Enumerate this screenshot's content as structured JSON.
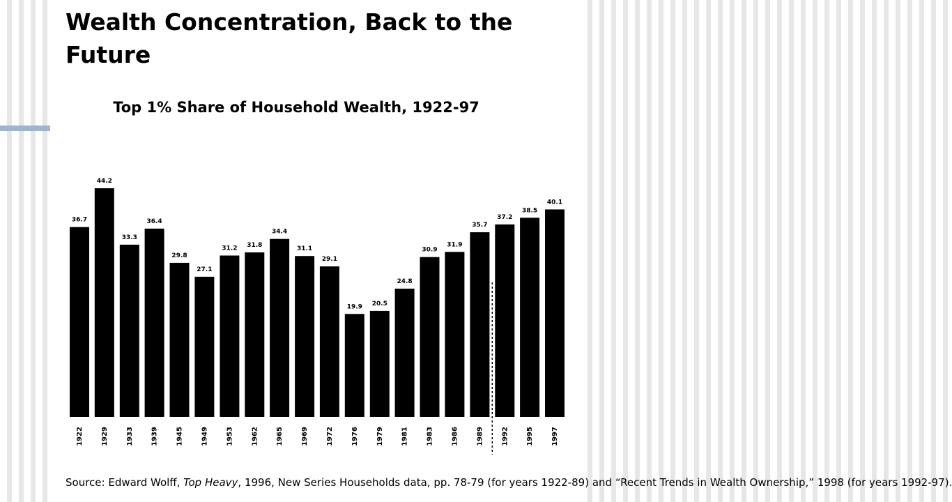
{
  "slide": {
    "title": "Wealth Concentration, Back to the Future"
  },
  "source": {
    "prefix": "Source: Edward Wolff, ",
    "book_title": "Top Heavy",
    "rest": ", 1996, New Series Households data, pp. 78-79 (for years 1922-89) and “Recent Trends in Wealth Ownership,” 1998 (for years 1992-97)."
  },
  "colors": {
    "bar": "#000000",
    "accent_line": "#9fb4cd",
    "panel": "#ffffff"
  },
  "chart_data": {
    "type": "bar",
    "title": "Top 1% Share of Household Wealth, 1922-97",
    "categories": [
      "1922",
      "1929",
      "1933",
      "1939",
      "1945",
      "1949",
      "1953",
      "1962",
      "1965",
      "1969",
      "1972",
      "1976",
      "1979",
      "1981",
      "1983",
      "1986",
      "1989",
      "1992",
      "1995",
      "1997"
    ],
    "values": [
      36.7,
      44.2,
      33.3,
      36.4,
      29.8,
      27.1,
      31.2,
      31.8,
      34.4,
      31.1,
      29.1,
      19.9,
      20.5,
      24.8,
      30.9,
      31.9,
      35.7,
      37.2,
      38.5,
      40.1
    ],
    "value_labels": [
      "36.7",
      "44.2",
      "33.3",
      "36.4",
      "29.8",
      "27.1",
      "31.2",
      "31.8",
      "34.4",
      "31.1",
      "29.1",
      "19.9",
      "20.5",
      "24.8",
      "30.9",
      "31.9",
      "35.7",
      "37.2",
      "38.5",
      "40.1"
    ],
    "series_break_after": "1989",
    "xlabel": "",
    "ylabel": "",
    "ylim": [
      0,
      44.2
    ],
    "grid": false,
    "legend": "none"
  }
}
